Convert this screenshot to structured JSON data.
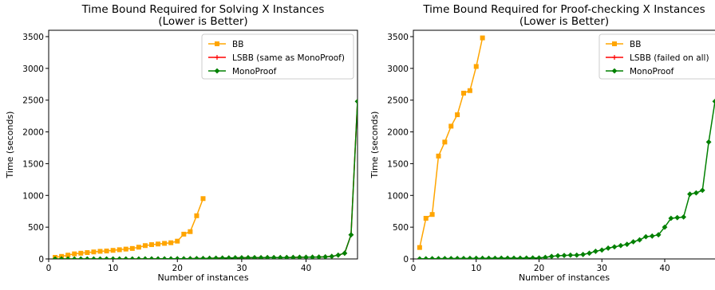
{
  "chart_data": [
    {
      "type": "line",
      "title": "Time Bound Required for Solving X Instances",
      "subtitle": "(Lower is Better)",
      "xlabel": "Number of instances",
      "ylabel": "Time (seconds)",
      "xlim": [
        0,
        48
      ],
      "ylim": [
        0,
        3600
      ],
      "xticks": [
        0,
        10,
        20,
        30,
        40
      ],
      "yticks": [
        0,
        500,
        1000,
        1500,
        2000,
        2500,
        3000,
        3500
      ],
      "grid": false,
      "legend": "top-right",
      "series": [
        {
          "name": "BB",
          "color": "#ffa500",
          "marker": "square",
          "x": [
            1,
            2,
            3,
            4,
            5,
            6,
            7,
            8,
            9,
            10,
            11,
            12,
            13,
            14,
            15,
            16,
            17,
            18,
            19,
            20,
            21,
            22,
            23,
            24
          ],
          "y": [
            25,
            40,
            60,
            80,
            90,
            100,
            110,
            120,
            125,
            135,
            145,
            155,
            165,
            185,
            210,
            225,
            235,
            245,
            255,
            280,
            390,
            430,
            680,
            950
          ]
        },
        {
          "name": "LSBB (same as MonoProof)",
          "color": "#ff0000",
          "marker": "plus",
          "x": [
            1,
            2,
            3,
            4,
            5,
            6,
            7,
            8,
            9,
            10,
            11,
            12,
            13,
            14,
            15,
            16,
            17,
            18,
            19,
            20,
            21,
            22,
            23,
            24,
            25,
            26,
            27,
            28,
            29,
            30,
            31,
            32,
            33,
            34,
            35,
            36,
            37,
            38,
            39,
            40,
            41,
            42,
            43,
            44,
            45,
            46,
            47,
            48
          ],
          "y": [
            0,
            0,
            0,
            0,
            0,
            0,
            0,
            0,
            0,
            0,
            0,
            0,
            0,
            0,
            1,
            1,
            1,
            2,
            2,
            3,
            3,
            5,
            6,
            8,
            10,
            12,
            14,
            16,
            18,
            19,
            20,
            20,
            20,
            22,
            22,
            22,
            23,
            24,
            26,
            27,
            28,
            30,
            33,
            40,
            60,
            90,
            380,
            2480
          ]
        },
        {
          "name": "MonoProof",
          "color": "#008000",
          "marker": "diamond",
          "x": [
            1,
            2,
            3,
            4,
            5,
            6,
            7,
            8,
            9,
            10,
            11,
            12,
            13,
            14,
            15,
            16,
            17,
            18,
            19,
            20,
            21,
            22,
            23,
            24,
            25,
            26,
            27,
            28,
            29,
            30,
            31,
            32,
            33,
            34,
            35,
            36,
            37,
            38,
            39,
            40,
            41,
            42,
            43,
            44,
            45,
            46,
            47,
            48
          ],
          "y": [
            0,
            0,
            0,
            0,
            0,
            0,
            0,
            0,
            0,
            0,
            0,
            0,
            0,
            0,
            1,
            1,
            1,
            2,
            2,
            3,
            3,
            5,
            6,
            8,
            10,
            12,
            14,
            16,
            18,
            19,
            20,
            20,
            20,
            22,
            22,
            22,
            23,
            24,
            26,
            27,
            28,
            30,
            33,
            40,
            60,
            90,
            380,
            2480
          ]
        }
      ]
    },
    {
      "type": "line",
      "title": "Time Bound Required for Proof-checking X Instances",
      "subtitle": "(Lower is Better)",
      "xlabel": "Number of instances",
      "ylabel": "Time (seconds)",
      "xlim": [
        0,
        48
      ],
      "ylim": [
        0,
        3600
      ],
      "xticks": [
        0,
        10,
        20,
        30,
        40
      ],
      "yticks": [
        0,
        500,
        1000,
        1500,
        2000,
        2500,
        3000,
        3500
      ],
      "grid": false,
      "legend": "top-right",
      "series": [
        {
          "name": "BB",
          "color": "#ffa500",
          "marker": "square",
          "x": [
            1,
            2,
            3,
            4,
            5,
            6,
            7,
            8,
            9,
            10,
            11
          ],
          "y": [
            180,
            640,
            700,
            1620,
            1840,
            2090,
            2270,
            2610,
            2650,
            3030,
            3480
          ]
        },
        {
          "name": "LSBB (failed on all)",
          "color": "#ff0000",
          "marker": "plus",
          "x": [],
          "y": []
        },
        {
          "name": "MonoProof",
          "color": "#008000",
          "marker": "diamond",
          "x": [
            1,
            2,
            3,
            4,
            5,
            6,
            7,
            8,
            9,
            10,
            11,
            12,
            13,
            14,
            15,
            16,
            17,
            18,
            19,
            20,
            21,
            22,
            23,
            24,
            25,
            26,
            27,
            28,
            29,
            30,
            31,
            32,
            33,
            34,
            35,
            36,
            37,
            38,
            39,
            40,
            41,
            42,
            43,
            44,
            45,
            46,
            47,
            48
          ],
          "y": [
            2,
            3,
            4,
            5,
            6,
            6,
            7,
            8,
            9,
            10,
            10,
            11,
            11,
            12,
            12,
            13,
            13,
            14,
            15,
            16,
            25,
            40,
            50,
            55,
            60,
            60,
            70,
            90,
            120,
            140,
            170,
            190,
            210,
            230,
            270,
            300,
            350,
            360,
            380,
            500,
            640,
            650,
            660,
            1020,
            1040,
            1080,
            1840,
            2480
          ]
        }
      ]
    }
  ]
}
